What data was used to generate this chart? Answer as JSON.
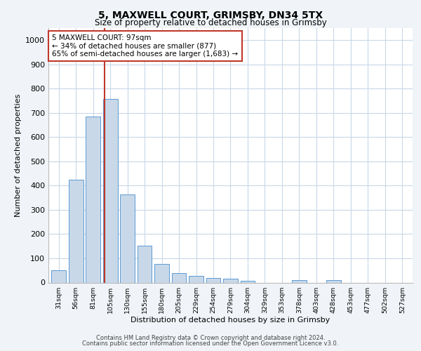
{
  "title1": "5, MAXWELL COURT, GRIMSBY, DN34 5TX",
  "title2": "Size of property relative to detached houses in Grimsby",
  "xlabel": "Distribution of detached houses by size in Grimsby",
  "ylabel": "Number of detached properties",
  "categories": [
    "31sqm",
    "56sqm",
    "81sqm",
    "105sqm",
    "130sqm",
    "155sqm",
    "180sqm",
    "205sqm",
    "229sqm",
    "254sqm",
    "279sqm",
    "304sqm",
    "329sqm",
    "353sqm",
    "378sqm",
    "403sqm",
    "428sqm",
    "453sqm",
    "477sqm",
    "502sqm",
    "527sqm"
  ],
  "values": [
    50,
    425,
    685,
    757,
    363,
    152,
    76,
    38,
    27,
    18,
    15,
    8,
    0,
    0,
    10,
    0,
    10,
    0,
    0,
    0,
    0
  ],
  "bar_color": "#c8d8e8",
  "bar_edge_color": "#5b9bd5",
  "annotation_text": "5 MAXWELL COURT: 97sqm\n← 34% of detached houses are smaller (877)\n65% of semi-detached houses are larger (1,683) →",
  "vline_color": "#c0392b",
  "annotation_box_edge": "#c0392b",
  "ylim": [
    0,
    1050
  ],
  "yticks": [
    0,
    100,
    200,
    300,
    400,
    500,
    600,
    700,
    800,
    900,
    1000
  ],
  "footer1": "Contains HM Land Registry data © Crown copyright and database right 2024.",
  "footer2": "Contains public sector information licensed under the Open Government Licence v3.0.",
  "bg_color": "#f0f4f8",
  "plot_bg_color": "#ffffff",
  "grid_color": "#c8d8e8"
}
